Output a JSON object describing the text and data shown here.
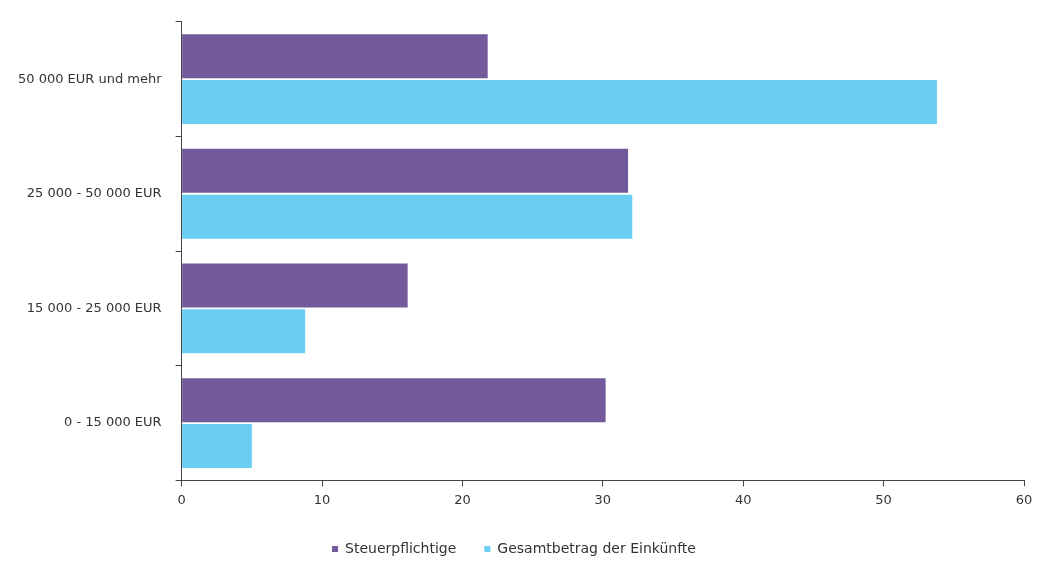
{
  "chart_data": {
    "type": "bar",
    "orientation": "horizontal",
    "categories": [
      "50 000 EUR und mehr",
      "25 000 - 50 000 EUR",
      "15 000 - 25 000 EUR",
      "0 - 15 000 EUR"
    ],
    "series": [
      {
        "name": "Steuerpflichtige",
        "color": "#735a9b",
        "values": [
          21.8,
          31.8,
          16.1,
          30.2
        ]
      },
      {
        "name": "Gesamtbetrag der Einkünfte",
        "color": "#6acdf2",
        "values": [
          53.8,
          32.1,
          8.8,
          5.0
        ]
      }
    ],
    "xlim": [
      0,
      60
    ],
    "xticks": [
      0,
      10,
      20,
      30,
      40,
      50,
      60
    ],
    "grid": false,
    "legend": "bottom"
  }
}
